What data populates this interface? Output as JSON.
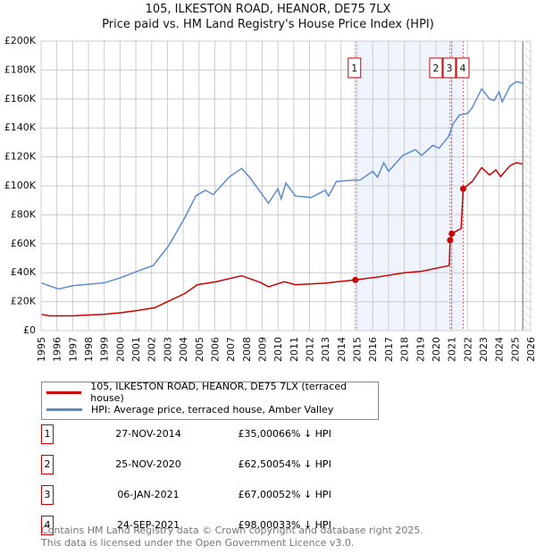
{
  "header": {
    "line1": "105, ILKESTON ROAD, HEANOR, DE75 7LX",
    "line2": "Price paid vs. HM Land Registry's House Price Index (HPI)"
  },
  "chart_data": {
    "type": "line",
    "title": "105, ILKESTON ROAD, HEANOR, DE75 7LX — Price paid vs. HM Land Registry's House Price Index (HPI)",
    "xlim": [
      1995,
      2026
    ],
    "ylim": [
      0,
      200000
    ],
    "x_ticks": [
      "1995",
      "1996",
      "1997",
      "1998",
      "1999",
      "2000",
      "2001",
      "2002",
      "2003",
      "2004",
      "2005",
      "2006",
      "2007",
      "2008",
      "2009",
      "2010",
      "2011",
      "2012",
      "2013",
      "2014",
      "2015",
      "2016",
      "2017",
      "2018",
      "2019",
      "2020",
      "2021",
      "2022",
      "2023",
      "2024",
      "2025",
      "2026"
    ],
    "y_ticks": [
      {
        "v": 0,
        "label": "£0"
      },
      {
        "v": 20000,
        "label": "£20K"
      },
      {
        "v": 40000,
        "label": "£40K"
      },
      {
        "v": 60000,
        "label": "£60K"
      },
      {
        "v": 80000,
        "label": "£80K"
      },
      {
        "v": 100000,
        "label": "£100K"
      },
      {
        "v": 120000,
        "label": "£120K"
      },
      {
        "v": 140000,
        "label": "£140K"
      },
      {
        "v": 160000,
        "label": "£160K"
      },
      {
        "v": 180000,
        "label": "£180K"
      },
      {
        "v": 200000,
        "label": "£200K"
      }
    ],
    "grid": true,
    "shaded_range": [
      2014.9,
      2021.73
    ],
    "forecast_hatch_from": 2025.5,
    "series": [
      {
        "name": "105, ILKESTON ROAD, HEANOR, DE75 7LX (terraced house)",
        "color": "#cc0000",
        "x": [
          1995.0,
          1995.5,
          1997.0,
          1998.0,
          1999.0,
          2000.0,
          2001.1,
          2002.2,
          2003.1,
          2004.1,
          2004.9,
          2006.1,
          2007.7,
          2008.9,
          2009.4,
          2010.4,
          2011.1,
          2013.0,
          2013.8,
          2014.9,
          2016.3,
          2018.0,
          2019.1,
          2020.6,
          2020.85,
          2020.9,
          2021.01,
          2021.6,
          2021.73,
          2022.3,
          2022.9,
          2023.4,
          2023.8,
          2024.1,
          2024.7,
          2025.1,
          2025.5
        ],
        "y": [
          11300,
          10200,
          10200,
          10800,
          11300,
          12300,
          13900,
          15800,
          20500,
          25600,
          31700,
          33800,
          37900,
          33200,
          30300,
          33800,
          31700,
          32800,
          33800,
          35000,
          37000,
          40000,
          41000,
          44400,
          45000,
          62500,
          67000,
          70600,
          98000,
          103000,
          112600,
          107500,
          111000,
          106400,
          114000,
          116000,
          115000
        ]
      },
      {
        "name": "HPI: Average price, terraced house, Amber Valley",
        "color": "#5b8ccf",
        "x": [
          1995.0,
          1996.1,
          1997.0,
          1998.0,
          1999.0,
          2000.0,
          2001.1,
          2002.1,
          2003.1,
          2004.1,
          2004.8,
          2005.4,
          2005.9,
          2006.9,
          2007.7,
          2008.2,
          2008.8,
          2009.4,
          2010.0,
          2010.2,
          2010.5,
          2011.1,
          2012.1,
          2013.0,
          2013.2,
          2013.7,
          2014.8,
          2015.2,
          2016.0,
          2016.3,
          2016.7,
          2017.0,
          2017.9,
          2018.7,
          2019.1,
          2019.8,
          2020.2,
          2020.8,
          2021.1,
          2021.5,
          2022.0,
          2022.3,
          2022.9,
          2023.4,
          2023.7,
          2024.0,
          2024.2,
          2024.7,
          2025.1,
          2025.5
        ],
        "y": [
          33000,
          28700,
          31000,
          32000,
          33000,
          36400,
          41000,
          45000,
          59000,
          78000,
          93000,
          97000,
          94000,
          106000,
          112000,
          106000,
          97000,
          88000,
          98000,
          91000,
          102000,
          93000,
          92000,
          97000,
          93000,
          103000,
          104000,
          104000,
          110000,
          106000,
          116000,
          110000,
          121000,
          125000,
          121000,
          128000,
          126000,
          134000,
          143000,
          149000,
          150000,
          154000,
          167000,
          160000,
          159000,
          165000,
          158000,
          169000,
          172000,
          171000
        ]
      }
    ],
    "sales": [
      {
        "num": "1",
        "x": 2014.9,
        "price": 35000
      },
      {
        "num": "2",
        "x": 2020.9,
        "price": 62500
      },
      {
        "num": "3",
        "x": 2021.01,
        "price": 67000
      },
      {
        "num": "4",
        "x": 2021.73,
        "price": 98000
      }
    ]
  },
  "legend": {
    "red": "105, ILKESTON ROAD, HEANOR, DE75 7LX (terraced house)",
    "blue": "HPI: Average price, terraced house, Amber Valley"
  },
  "table": [
    {
      "num": "1",
      "date": "27-NOV-2014",
      "price": "£35,000",
      "hpi": "66% ↓ HPI"
    },
    {
      "num": "2",
      "date": "25-NOV-2020",
      "price": "£62,500",
      "hpi": "54% ↓ HPI"
    },
    {
      "num": "3",
      "date": "06-JAN-2021",
      "price": "£67,000",
      "hpi": "52% ↓ HPI"
    },
    {
      "num": "4",
      "date": "24-SEP-2021",
      "price": "£98,000",
      "hpi": "33% ↓ HPI"
    }
  ],
  "footer": {
    "line1": "Contains HM Land Registry data © Crown copyright and database right 2025.",
    "line2": "This data is licensed under the Open Government Licence v3.0."
  }
}
